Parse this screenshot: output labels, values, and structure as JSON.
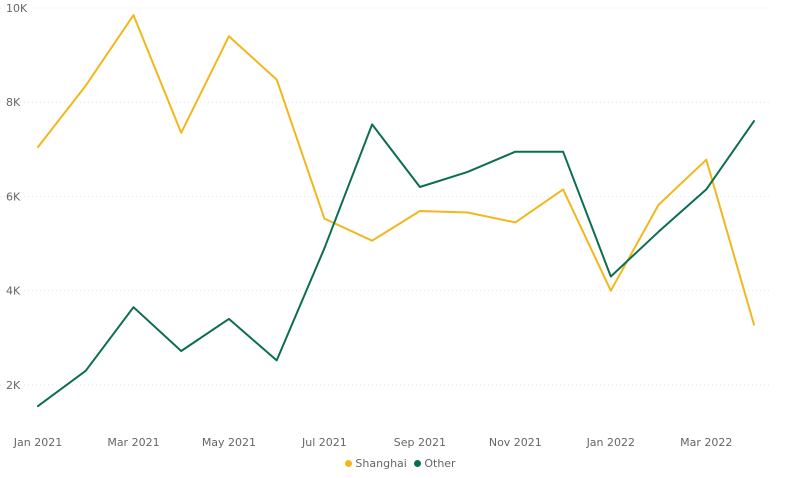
{
  "chart_data": {
    "type": "line",
    "title": "",
    "xlabel": "",
    "ylabel": "",
    "x": [
      "Jan 2021",
      "Feb 2021",
      "Mar 2021",
      "Apr 2021",
      "May 2021",
      "Jun 2021",
      "Jul 2021",
      "Aug 2021",
      "Sep 2021",
      "Oct 2021",
      "Nov 2021",
      "Dec 2021",
      "Jan 2022",
      "Feb 2022",
      "Mar 2022",
      "Apr 2022"
    ],
    "x_tick_labels": [
      "Jan 2021",
      "Mar 2021",
      "May 2021",
      "Jul 2021",
      "Sep 2021",
      "Nov 2021",
      "Jan 2022",
      "Mar 2022"
    ],
    "ylim": [
      1000,
      10000
    ],
    "y_ticks": [
      2000,
      4000,
      6000,
      8000,
      10000
    ],
    "y_tick_labels": [
      "2K",
      "4K",
      "6K",
      "8K",
      "10K"
    ],
    "grid": true,
    "legend_position": "bottom-center",
    "series": [
      {
        "name": "Shanghai",
        "color": "#F2B71C",
        "values": [
          7050,
          8350,
          9850,
          7350,
          9400,
          8480,
          5530,
          5060,
          5690,
          5660,
          5450,
          6150,
          4000,
          5820,
          6780,
          3280
        ]
      },
      {
        "name": "Other",
        "color": "#0B6E4F",
        "values": [
          1550,
          2300,
          3650,
          2720,
          3400,
          2520,
          4900,
          7530,
          6200,
          6520,
          6950,
          6950,
          4300,
          5250,
          6150,
          7600
        ]
      }
    ]
  }
}
